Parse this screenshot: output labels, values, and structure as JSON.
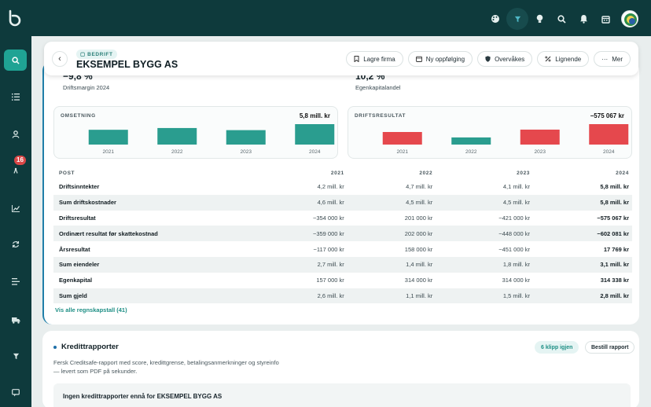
{
  "company": {
    "tag": "BEDRIFT",
    "name": "EKSEMPEL BYGG AS"
  },
  "actions": [
    {
      "label": "Lagre firma",
      "icon": "bookmark-icon"
    },
    {
      "label": "Ny oppfølging",
      "icon": "calendar-icon"
    },
    {
      "label": "Overvåkes",
      "icon": "shield-icon"
    },
    {
      "label": "Lignende",
      "icon": "link-icon"
    },
    {
      "label": "Mer",
      "icon": "more-icon"
    }
  ],
  "sidebar": {
    "alerts_badge": "16"
  },
  "kpis": [
    {
      "value": "−9,8 %",
      "label": "Driftsmargin 2024"
    },
    {
      "value": "10,2 %",
      "label": "Egenkapitalandel"
    }
  ],
  "chart_data": [
    {
      "type": "bar",
      "title": "OMSETNING",
      "headline": "5,8 mill. kr",
      "categories": [
        "2021",
        "2022",
        "2023",
        "2024"
      ],
      "values": [
        4.2,
        4.7,
        4.1,
        5.8
      ],
      "color": "#2a9d8f"
    },
    {
      "type": "bar",
      "title": "DRIFTSRESULTAT",
      "headline": "−575 067 kr",
      "categories": [
        "2021",
        "2022",
        "2023",
        "2024"
      ],
      "values": [
        -354000,
        201000,
        -421000,
        -575067
      ],
      "color": "#e5484d",
      "positive_color": "#2a9d8f"
    }
  ],
  "table": {
    "headers": [
      "POST",
      "2021",
      "2022",
      "2023",
      "2024"
    ],
    "rows": [
      [
        "Driftsinntekter",
        "4,2 mill. kr",
        "4,7 mill. kr",
        "4,1 mill. kr",
        "5,8 mill. kr"
      ],
      [
        "Sum driftskostnader",
        "4,6 mill. kr",
        "4,5 mill. kr",
        "4,5 mill. kr",
        "5,8 mill. kr"
      ],
      [
        "Driftsresultat",
        "−354 000 kr",
        "201 000 kr",
        "−421 000 kr",
        "−575 067 kr"
      ],
      [
        "Ordinært resultat før skattekostnad",
        "−359 000 kr",
        "202 000 kr",
        "−448 000 kr",
        "−602 081 kr"
      ],
      [
        "Årsresultat",
        "−117 000 kr",
        "158 000 kr",
        "−451 000 kr",
        "17 769 kr"
      ],
      [
        "Sum eiendeler",
        "2,7 mill. kr",
        "1,4 mill. kr",
        "1,8 mill. kr",
        "3,1 mill. kr"
      ],
      [
        "Egenkapital",
        "157 000 kr",
        "314 000 kr",
        "314 000 kr",
        "314 338 kr"
      ],
      [
        "Sum gjeld",
        "2,6 mill. kr",
        "1,1 mill. kr",
        "1,5 mill. kr",
        "2,8 mill. kr"
      ]
    ]
  },
  "all_link": "Vis alle regnskapstall (41)",
  "credit": {
    "title": "Kredittrapporter",
    "description": "Fersk Creditsafe-rapport med score, kredittgrense, betalingsanmerkninger og styreinfo — levert som PDF på sekunder.",
    "clips": "6 klipp igjen",
    "order": "Bestill rapport",
    "empty": "Ingen kredittrapporter ennå for EKSEMPEL BYGG AS"
  }
}
